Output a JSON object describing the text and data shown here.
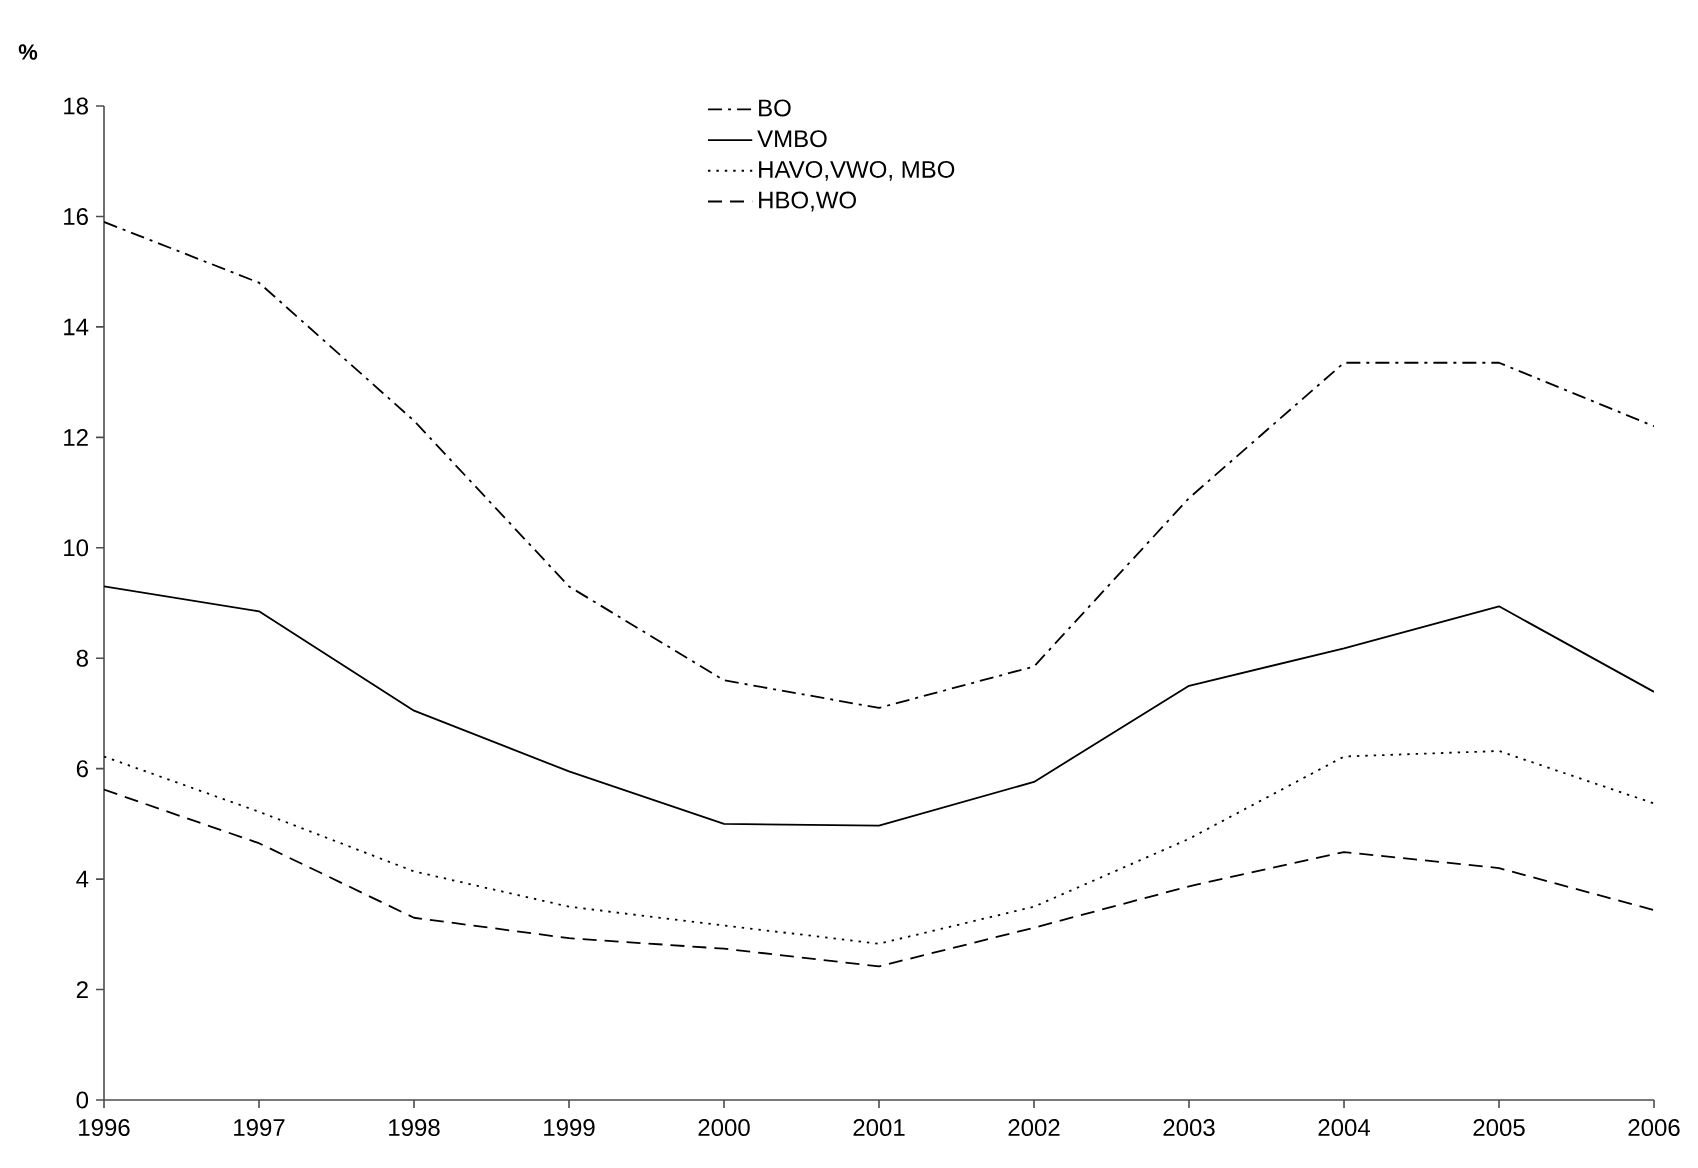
{
  "chart_data": {
    "type": "line",
    "ylabel": "%",
    "x": [
      1996,
      1997,
      1998,
      1999,
      2000,
      2001,
      2002,
      2003,
      2004,
      2005,
      2006
    ],
    "xlim": [
      1996,
      2006
    ],
    "xticks": [
      1996,
      1997,
      1998,
      1999,
      2000,
      2001,
      2002,
      2003,
      2004,
      2005,
      2006
    ],
    "ylim": [
      0,
      18
    ],
    "yticks": [
      0,
      2,
      4,
      6,
      8,
      10,
      12,
      14,
      16,
      18
    ],
    "grid": false,
    "legend": "top",
    "marker": "none",
    "series": [
      {
        "name": "BO",
        "color": "#000000",
        "line_style": "dashdot",
        "values": [
          15.9,
          14.8,
          12.3,
          9.3,
          7.6,
          7.1,
          7.85,
          10.9,
          13.35,
          13.35,
          12.2
        ]
      },
      {
        "name": "VMBO",
        "color": "#000000",
        "line_style": "solid",
        "values": [
          9.3,
          8.85,
          7.05,
          5.95,
          5.0,
          4.97,
          5.76,
          7.5,
          8.18,
          8.94,
          7.39
        ]
      },
      {
        "name": "HAVO,VWO, MBO",
        "color": "#000000",
        "line_style": "dotted",
        "values": [
          6.22,
          5.22,
          4.14,
          3.5,
          3.16,
          2.83,
          3.5,
          4.73,
          6.22,
          6.32,
          5.37
        ]
      },
      {
        "name": "HBO,WO",
        "color": "#000000",
        "line_style": "dashed",
        "values": [
          5.62,
          4.65,
          3.3,
          2.93,
          2.74,
          2.42,
          3.12,
          3.87,
          4.49,
          4.2,
          3.44
        ]
      }
    ]
  }
}
